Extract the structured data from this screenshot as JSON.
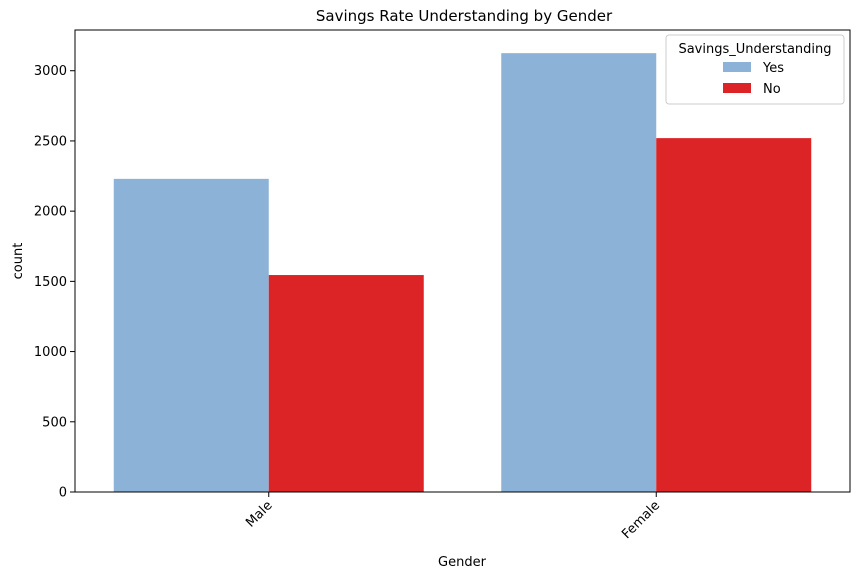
{
  "chart_data": {
    "type": "bar",
    "title": "Savings Rate Understanding by Gender",
    "xlabel": "Gender",
    "ylabel": "count",
    "categories": [
      "Male",
      "Female"
    ],
    "series": [
      {
        "name": "Yes",
        "color": "#8db2d8",
        "values": [
          2230,
          3125
        ]
      },
      {
        "name": "No",
        "color": "#dc2326",
        "values": [
          1545,
          2520
        ]
      }
    ],
    "ylim": [
      0,
      3290
    ],
    "yticks": [
      0,
      500,
      1000,
      1500,
      2000,
      2500,
      3000
    ],
    "legend": {
      "title": "Savings_Understanding",
      "position": "top-right"
    },
    "grid": false,
    "xtick_rotation": "45°"
  }
}
